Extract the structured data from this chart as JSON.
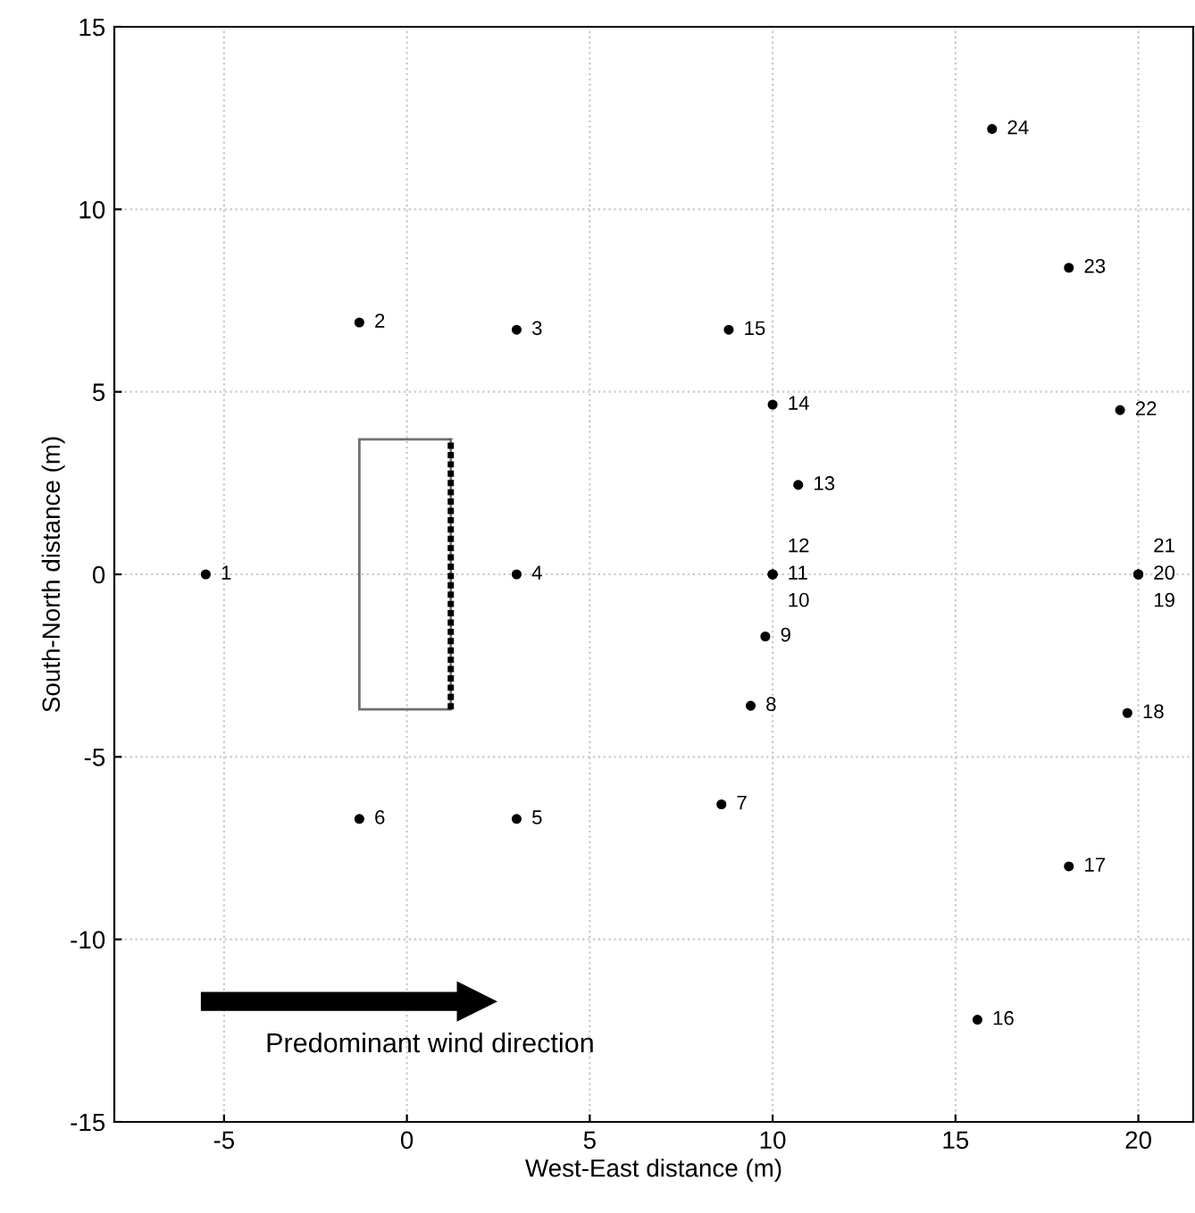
{
  "chart_data": {
    "type": "scatter",
    "xlabel": "West-East distance (m)",
    "ylabel": "South-North distance (m)",
    "x": [
      -5.5,
      -1.3,
      3,
      3,
      3,
      -1.3,
      8.6,
      9.4,
      9.8,
      10,
      10,
      10,
      10.7,
      10,
      8.8,
      15.6,
      18.1,
      19.7,
      20,
      20,
      20,
      19.5,
      18.1,
      16
    ],
    "series": [
      {
        "color": "#000000",
        "values": [
          0,
          6.9,
          6.7,
          0,
          -6.7,
          -6.7,
          -6.3,
          -3.6,
          -1.7,
          0,
          0,
          0,
          2.45,
          4.65,
          6.7,
          -12.2,
          -8,
          -3.8,
          0,
          0,
          0,
          4.5,
          8.4,
          12.2
        ]
      }
    ],
    "marker": "circle",
    "grid": true,
    "xlim": [
      -8,
      21.5
    ],
    "xticks": [
      -5,
      0,
      5,
      10,
      15,
      20
    ],
    "ylim": [
      -15,
      15
    ],
    "yticks": [
      -15,
      -10,
      -5,
      0,
      5,
      10,
      15
    ],
    "annotations": [
      {
        "text": "1",
        "x": -5.5,
        "y": 0
      },
      {
        "text": "2",
        "x": -1.3,
        "y": 6.9
      },
      {
        "text": "3",
        "x": 3,
        "y": 6.7
      },
      {
        "text": "4",
        "x": 3,
        "y": 0
      },
      {
        "text": "5",
        "x": 3,
        "y": -6.7
      },
      {
        "text": "6",
        "x": -1.3,
        "y": -6.7
      },
      {
        "text": "7",
        "x": 8.6,
        "y": -6.3
      },
      {
        "text": "8",
        "x": 9.4,
        "y": -3.6
      },
      {
        "text": "9",
        "x": 9.8,
        "y": -1.7
      },
      {
        "text": "10",
        "x": 10,
        "y": 0
      },
      {
        "text": "11",
        "x": 10,
        "y": 0
      },
      {
        "text": "12",
        "x": 10,
        "y": 0
      },
      {
        "text": "13",
        "x": 10.7,
        "y": 2.45
      },
      {
        "text": "14",
        "x": 10,
        "y": 4.65
      },
      {
        "text": "15",
        "x": 8.8,
        "y": 6.7
      },
      {
        "text": "16",
        "x": 15.6,
        "y": -12.2
      },
      {
        "text": "17",
        "x": 18.1,
        "y": -8
      },
      {
        "text": "18",
        "x": 19.7,
        "y": -3.8
      },
      {
        "text": "19",
        "x": 20,
        "y": 0
      },
      {
        "text": "20",
        "x": 20,
        "y": 0
      },
      {
        "text": "21",
        "x": 20,
        "y": 0
      },
      {
        "text": "22",
        "x": 19.5,
        "y": 4.5
      },
      {
        "text": "23",
        "x": 18.1,
        "y": 8.4
      },
      {
        "text": "24",
        "x": 16,
        "y": 12.2
      },
      "Predominant wind direction"
    ]
  }
}
